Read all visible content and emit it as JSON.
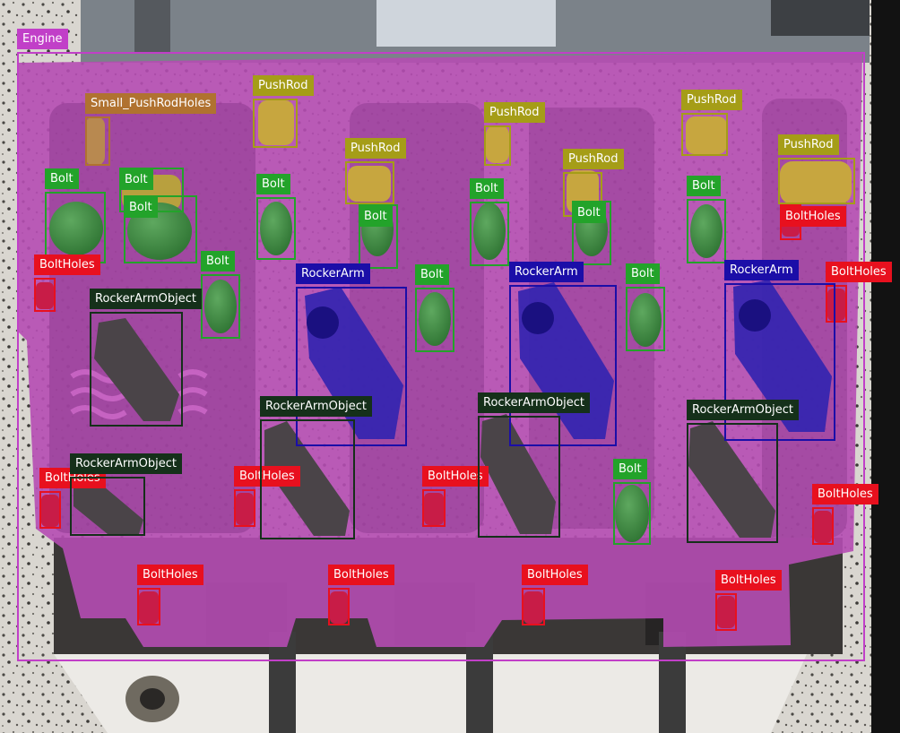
{
  "classes": {
    "Engine": {
      "color": "#c13fc8"
    },
    "Small_PushRodHoles": {
      "color": "#b07230"
    },
    "PushRod": {
      "color": "#a59d17"
    },
    "Bolt": {
      "color": "#23a32a"
    },
    "BoltHoles": {
      "color": "#e8101e"
    },
    "RockerArm": {
      "color": "#1b0ea8"
    },
    "RockerArmObject": {
      "color": "#15301a"
    }
  },
  "detections": [
    {
      "label": "Engine"
    },
    {
      "label": "Small_PushRodHoles"
    },
    {
      "label": "PushRod"
    },
    {
      "label": "PushRod"
    },
    {
      "label": "PushRod"
    },
    {
      "label": "PushRod"
    },
    {
      "label": "PushRod"
    },
    {
      "label": "PushRod"
    },
    {
      "label": "Bolt"
    },
    {
      "label": "Bolt"
    },
    {
      "label": "Bolt"
    },
    {
      "label": "Bolt"
    },
    {
      "label": "Bolt"
    },
    {
      "label": "Bolt"
    },
    {
      "label": "Bolt"
    },
    {
      "label": "Bolt"
    },
    {
      "label": "Bolt"
    },
    {
      "label": "Bolt"
    },
    {
      "label": "Bolt"
    },
    {
      "label": "Bolt"
    },
    {
      "label": "BoltHoles"
    },
    {
      "label": "BoltHoles"
    },
    {
      "label": "BoltHoles"
    },
    {
      "label": "BoltHoles"
    },
    {
      "label": "BoltHoles"
    },
    {
      "label": "BoltHoles"
    },
    {
      "label": "BoltHoles"
    },
    {
      "label": "BoltHoles"
    },
    {
      "label": "BoltHoles"
    },
    {
      "label": "BoltHoles"
    },
    {
      "label": "BoltHoles"
    },
    {
      "label": "RockerArm"
    },
    {
      "label": "RockerArm"
    },
    {
      "label": "RockerArm"
    },
    {
      "label": "RockerArmObject"
    },
    {
      "label": "RockerArmObject"
    },
    {
      "label": "RockerArmObject"
    },
    {
      "label": "RockerArmObject"
    },
    {
      "label": "RockerArmObject"
    }
  ]
}
